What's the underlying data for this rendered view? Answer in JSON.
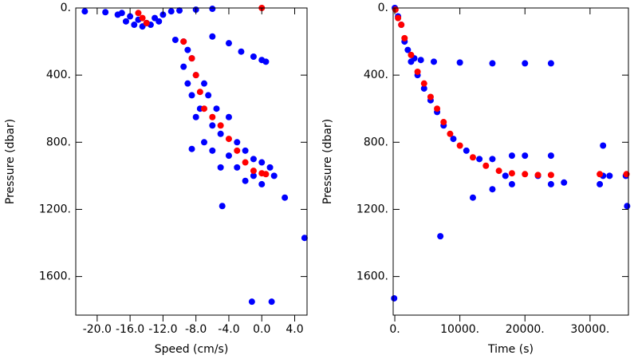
{
  "chart_data": [
    {
      "type": "scatter",
      "xlabel": "Speed (cm/s)",
      "ylabel": "Pressure (dbar)",
      "xlim": [
        -22.6,
        5.5
      ],
      "ylim": [
        1830,
        0
      ],
      "xticks": [
        {
          "value": -20,
          "label": "-20.0"
        },
        {
          "value": -16,
          "label": "-16.0"
        },
        {
          "value": -12,
          "label": "-12.0"
        },
        {
          "value": -8,
          "label": "-8.0"
        },
        {
          "value": -4,
          "label": "-4.0"
        },
        {
          "value": 0,
          "label": "0.0"
        },
        {
          "value": 4,
          "label": "4.0"
        }
      ],
      "yticks": [
        {
          "value": 0,
          "label": "0."
        },
        {
          "value": 400,
          "label": "400."
        },
        {
          "value": 800,
          "label": "800."
        },
        {
          "value": 1200,
          "label": "1200."
        },
        {
          "value": 1600,
          "label": "1600."
        }
      ],
      "series": [
        {
          "color": "#0000ff",
          "x": [
            -21.5,
            -19,
            -17,
            -16,
            -15,
            -14,
            -13,
            -12,
            -11,
            -10,
            -8,
            -6,
            -15.5,
            -13.5,
            -17.5,
            -12.5,
            -14.5,
            -16.5,
            -9.5,
            -10.5,
            -6,
            -4,
            -2.5,
            -1,
            0,
            0.5,
            -9,
            -8.5,
            -9.5,
            -8,
            -9,
            -7,
            -8.5,
            -6.5,
            -7.5,
            -5.5,
            -8,
            -6,
            -4,
            -7,
            -5,
            -3,
            -6,
            -4,
            -2,
            -5,
            -3,
            -1,
            0,
            1,
            -1,
            0,
            1.5,
            -2,
            -8.5,
            2.8,
            -4.8,
            5.2,
            -1.2,
            1.2
          ],
          "y": [
            20,
            25,
            30,
            50,
            70,
            90,
            60,
            40,
            20,
            15,
            10,
            5,
            100,
            100,
            40,
            80,
            110,
            80,
            200,
            190,
            170,
            210,
            260,
            290,
            310,
            320,
            250,
            300,
            350,
            400,
            450,
            450,
            520,
            520,
            600,
            600,
            650,
            700,
            650,
            800,
            750,
            800,
            850,
            880,
            850,
            950,
            950,
            900,
            920,
            950,
            1000,
            1050,
            1000,
            1030,
            840,
            1130,
            1180,
            1370,
            1750,
            1750
          ]
        },
        {
          "color": "#ff0000",
          "x": [
            -15,
            -14.5,
            -14,
            0,
            -9.5,
            -8.5,
            -8,
            -7.5,
            -7,
            -6,
            -5,
            -4,
            -3,
            -2,
            -1,
            0,
            0.5
          ],
          "y": [
            30,
            60,
            90,
            0,
            200,
            300,
            400,
            500,
            600,
            650,
            700,
            780,
            850,
            920,
            970,
            985,
            990
          ]
        }
      ]
    },
    {
      "type": "scatter",
      "xlabel": "Time (s)",
      "ylabel": "Pressure (dbar)",
      "xlim": [
        -250,
        35900
      ],
      "ylim": [
        1830,
        0
      ],
      "xticks": [
        {
          "value": 0,
          "label": "0."
        },
        {
          "value": 10000,
          "label": "10000."
        },
        {
          "value": 20000,
          "label": "20000."
        },
        {
          "value": 30000,
          "label": "30000."
        }
      ],
      "yticks": [
        {
          "value": 0,
          "label": "0."
        },
        {
          "value": 400,
          "label": "400."
        },
        {
          "value": 800,
          "label": "800."
        },
        {
          "value": 1200,
          "label": "1200."
        },
        {
          "value": 1600,
          "label": "1600."
        }
      ],
      "series": [
        {
          "color": "#0000ff",
          "x": [
            0,
            500,
            1000,
            1500,
            2000,
            3000,
            4000,
            6000,
            10000,
            15000,
            20000,
            24000,
            2500,
            3500,
            4500,
            5500,
            6500,
            7500,
            9000,
            11000,
            13000,
            15000,
            18000,
            20000,
            24000,
            15000,
            12000,
            18000,
            24000,
            26000,
            7000,
            -100,
            32000,
            32000,
            33000,
            35500,
            35700,
            31500,
            17000,
            22000
          ],
          "y": [
            0,
            50,
            100,
            200,
            250,
            300,
            310,
            320,
            325,
            330,
            330,
            330,
            320,
            400,
            480,
            550,
            620,
            700,
            780,
            850,
            900,
            900,
            880,
            880,
            880,
            1080,
            1130,
            1050,
            1050,
            1040,
            1360,
            1730,
            820,
            1000,
            1000,
            1000,
            1180,
            1050,
            1000,
            1000
          ]
        },
        {
          "color": "#ff0000",
          "x": [
            100,
            500,
            1000,
            1500,
            2500,
            3500,
            4500,
            5500,
            6500,
            7500,
            8500,
            10000,
            12000,
            14000,
            16000,
            18000,
            20000,
            22000,
            24000,
            31500,
            35600
          ],
          "y": [
            10,
            60,
            100,
            180,
            280,
            380,
            450,
            530,
            600,
            680,
            750,
            820,
            890,
            940,
            970,
            985,
            990,
            995,
            995,
            990,
            990
          ]
        }
      ]
    }
  ]
}
